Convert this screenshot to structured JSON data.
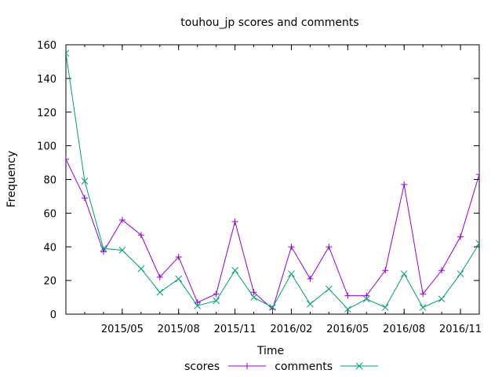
{
  "chart_data": {
    "type": "line",
    "title": "touhou_jp scores and comments",
    "xlabel": "Time",
    "ylabel": "Frequency",
    "ylim": [
      0,
      160
    ],
    "yticks": [
      0,
      20,
      40,
      60,
      80,
      100,
      120,
      140,
      160
    ],
    "xlim": [
      "2015-02",
      "2016-12"
    ],
    "xticks": [
      "2015/05",
      "2015/08",
      "2015/11",
      "2016/02",
      "2016/05",
      "2016/08",
      "2016/11"
    ],
    "x": [
      "2015-02",
      "2015-03",
      "2015-04",
      "2015-05",
      "2015-06",
      "2015-07",
      "2015-08",
      "2015-09",
      "2015-10",
      "2015-11",
      "2015-12",
      "2016-01",
      "2016-02",
      "2016-03",
      "2016-04",
      "2016-05",
      "2016-06",
      "2016-07",
      "2016-08",
      "2016-09",
      "2016-10",
      "2016-11",
      "2016-12"
    ],
    "series": [
      {
        "name": "scores",
        "color": "#9400d3",
        "marker": "plus",
        "values": [
          92,
          69,
          37,
          56,
          47,
          22,
          34,
          7,
          12,
          55,
          13,
          3,
          40,
          21,
          40,
          11,
          11,
          26,
          77,
          12,
          26,
          46,
          83
        ]
      },
      {
        "name": "comments",
        "color": "#009e73",
        "marker": "cross",
        "values": [
          155,
          79,
          39,
          38,
          27,
          13,
          21,
          5,
          8,
          26,
          10,
          4,
          24,
          6,
          15,
          3,
          9,
          4,
          24,
          4,
          9,
          24,
          42
        ]
      }
    ],
    "grid": false,
    "legend": "bottom-center"
  }
}
